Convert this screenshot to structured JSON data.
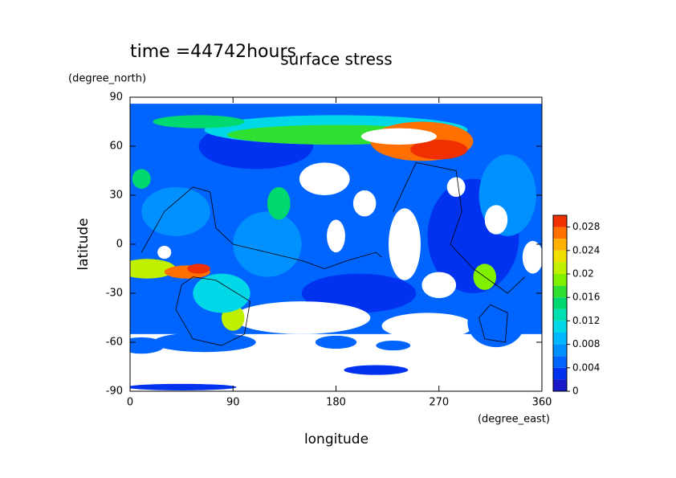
{
  "chart_data": {
    "type": "contour",
    "title": "surface stress",
    "subtitle": "time =44742hours",
    "x_label": "longitude",
    "x_unit": "(degree_east)",
    "y_label": "latitude",
    "y_unit": "(degree_north)",
    "xlim": [
      0,
      360
    ],
    "xticks": [
      0,
      90,
      180,
      270,
      360
    ],
    "ylim": [
      -90,
      90
    ],
    "yticks": [
      -90,
      -60,
      -30,
      0,
      30,
      60,
      90
    ],
    "clim": [
      0,
      0.03
    ],
    "cticks": [
      0,
      0.004,
      0.008,
      0.012,
      0.016,
      0.02,
      0.024,
      0.028
    ],
    "levels": [
      0,
      0.002,
      0.004,
      0.006,
      0.008,
      0.01,
      0.012,
      0.014,
      0.016,
      0.018,
      0.02,
      0.022,
      0.024,
      0.026,
      0.028
    ],
    "colors": [
      "#1818c8",
      "#0032f0",
      "#0064ff",
      "#0090ff",
      "#00b8ff",
      "#00d8e8",
      "#00e0b0",
      "#00d870",
      "#30e030",
      "#80f000",
      "#c0f000",
      "#f0e000",
      "#ffb000",
      "#ff7000",
      "#f03000"
    ]
  }
}
